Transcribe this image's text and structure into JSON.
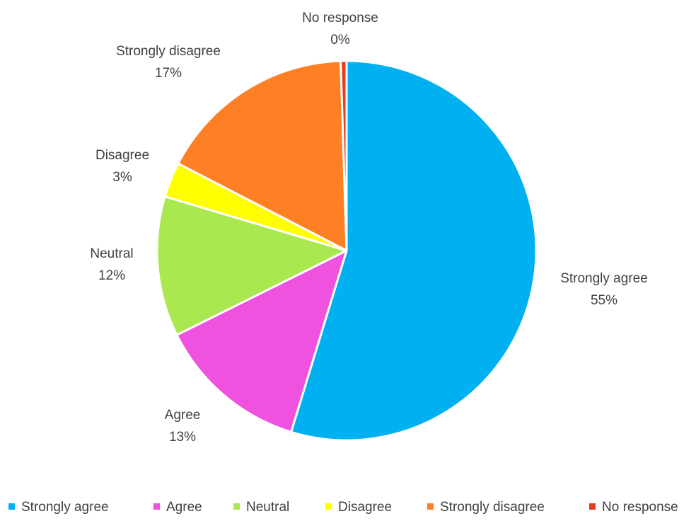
{
  "chart_data": {
    "type": "pie",
    "title": "",
    "categories": [
      "Strongly agree",
      "Agree",
      "Neutral",
      "Disagree",
      "Strongly disagree",
      "No response"
    ],
    "values": [
      55,
      13,
      12,
      3,
      17,
      0
    ],
    "value_labels": [
      "55%",
      "13%",
      "12%",
      "3%",
      "17%",
      "0%"
    ],
    "colors": [
      "#00B0F0",
      "#EE52DE",
      "#A9E84F",
      "#FFFF00",
      "#FF7F24",
      "#E8391E"
    ],
    "legend_position": "bottom",
    "start": "12 o'clock",
    "direction": "clockwise"
  }
}
